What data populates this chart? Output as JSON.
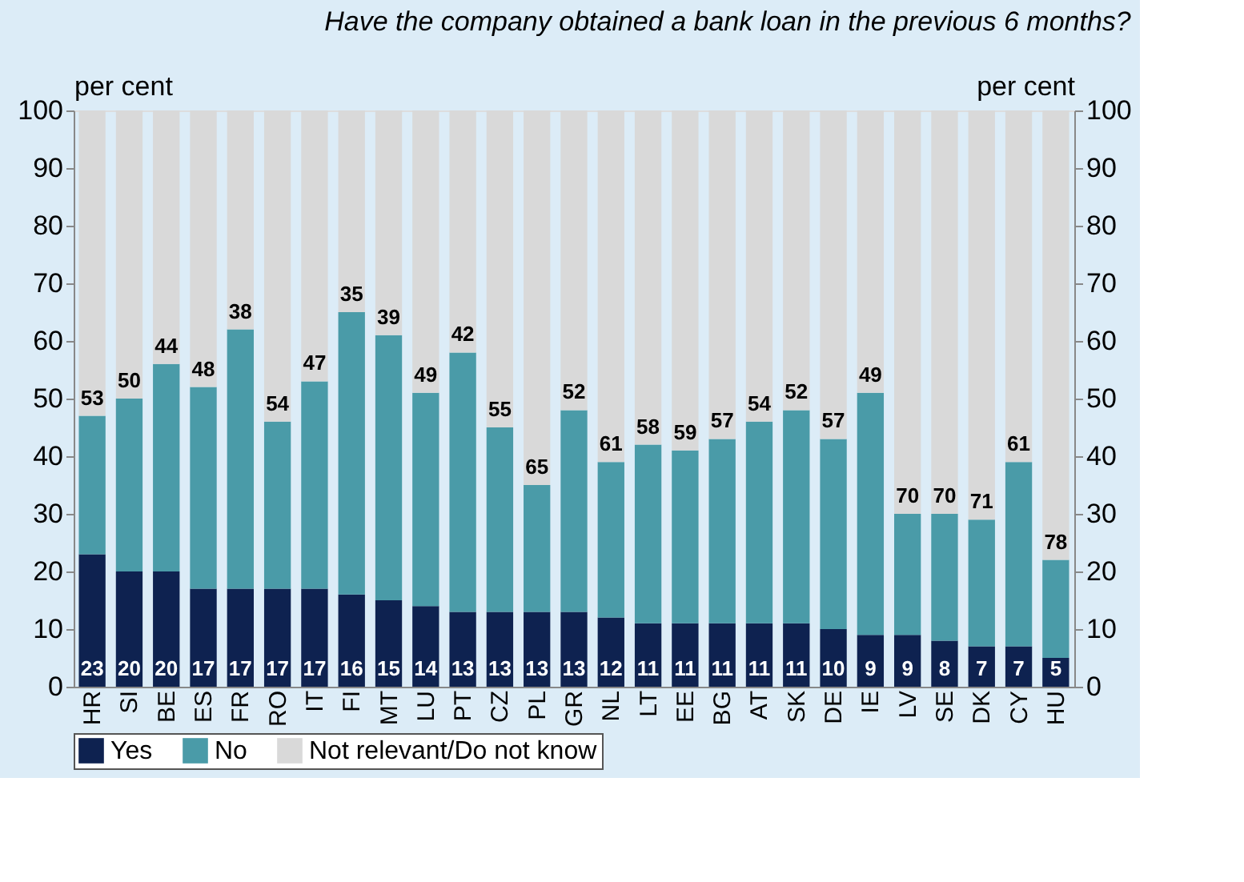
{
  "chart_data": {
    "type": "bar",
    "stacked": true,
    "title": "Have the company obtained a bank loan in the previous 6 months?",
    "ylabel": "per cent",
    "y2label": "per cent",
    "categories": [
      "HR",
      "SI",
      "BE",
      "ES",
      "FR",
      "RO",
      "IT",
      "FI",
      "MT",
      "LU",
      "PT",
      "CZ",
      "PL",
      "GR",
      "NL",
      "LT",
      "EE",
      "BG",
      "AT",
      "SK",
      "DE",
      "IE",
      "LV",
      "SE",
      "DK",
      "CY",
      "HU"
    ],
    "series": [
      {
        "name": "Yes",
        "color": "#0e2250",
        "values": [
          23,
          20,
          20,
          17,
          17,
          17,
          17,
          16,
          15,
          14,
          13,
          13,
          13,
          13,
          12,
          11,
          11,
          11,
          11,
          11,
          10,
          9,
          9,
          8,
          7,
          7,
          5
        ],
        "value_labels": [
          "23",
          "20",
          "20",
          "17",
          "17",
          "17",
          "17",
          "16",
          "15",
          "14",
          "13",
          "13",
          "13",
          "13",
          "12",
          "11",
          "11",
          "11",
          "11",
          "11",
          "10",
          "9",
          "9",
          "8",
          "7",
          "7",
          "5"
        ]
      },
      {
        "name": "No",
        "color": "#4a9ba8",
        "values": [
          24,
          30,
          36,
          35,
          45,
          29,
          36,
          49,
          46,
          37,
          45,
          32,
          22,
          35,
          27,
          31,
          30,
          32,
          35,
          37,
          33,
          42,
          21,
          22,
          22,
          32,
          17
        ]
      },
      {
        "name": "Not relevant/Do not know",
        "color": "#d9d9d9",
        "values": [
          53,
          50,
          44,
          48,
          38,
          54,
          47,
          35,
          39,
          49,
          42,
          55,
          65,
          52,
          61,
          58,
          59,
          57,
          54,
          52,
          57,
          49,
          70,
          70,
          71,
          61,
          78
        ],
        "value_labels": [
          "53",
          "50",
          "44",
          "48",
          "38",
          "54",
          "47",
          "35",
          "39",
          "49",
          "42",
          "55",
          "65",
          "52",
          "61",
          "58",
          "59",
          "57",
          "54",
          "52",
          "57",
          "49",
          "70",
          "70",
          "71",
          "61",
          "78"
        ]
      }
    ],
    "ylim": [
      0,
      100
    ],
    "yticks": [
      0,
      10,
      20,
      30,
      40,
      50,
      60,
      70,
      80,
      90,
      100
    ],
    "y2lim": [
      0,
      100
    ],
    "y2ticks": [
      0,
      10,
      20,
      30,
      40,
      50,
      60,
      70,
      80,
      90,
      100
    ],
    "grid": false,
    "legend": "bottom"
  }
}
